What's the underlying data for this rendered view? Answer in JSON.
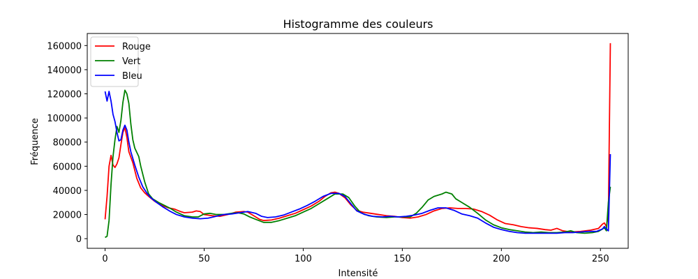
{
  "chart_data": {
    "type": "line",
    "title": "Histogramme des couleurs",
    "xlabel": "Intensité",
    "ylabel": "Fréquence",
    "xlim": [
      -9,
      264
    ],
    "ylim": [
      -8000,
      170000
    ],
    "xticks": [
      0,
      50,
      100,
      150,
      200,
      250
    ],
    "yticks": [
      0,
      20000,
      40000,
      60000,
      80000,
      100000,
      120000,
      140000,
      160000
    ],
    "grid": false,
    "legend_position": "top-left",
    "series": [
      {
        "name": "Rouge",
        "color": "#ff0000",
        "points": [
          [
            0,
            16000
          ],
          [
            1,
            35000
          ],
          [
            2,
            60000
          ],
          [
            3,
            69000
          ],
          [
            4,
            61000
          ],
          [
            5,
            59000
          ],
          [
            6,
            62000
          ],
          [
            7,
            67000
          ],
          [
            8,
            78000
          ],
          [
            9,
            88000
          ],
          [
            10,
            92000
          ],
          [
            11,
            84000
          ],
          [
            12,
            72000
          ],
          [
            14,
            63000
          ],
          [
            16,
            50000
          ],
          [
            18,
            42000
          ],
          [
            20,
            38000
          ],
          [
            22,
            35000
          ],
          [
            25,
            31000
          ],
          [
            28,
            28000
          ],
          [
            32,
            25500
          ],
          [
            35,
            24500
          ],
          [
            38,
            22500
          ],
          [
            40,
            21500
          ],
          [
            44,
            22000
          ],
          [
            46,
            23000
          ],
          [
            48,
            22500
          ],
          [
            50,
            20000
          ],
          [
            54,
            19000
          ],
          [
            58,
            18500
          ],
          [
            62,
            20000
          ],
          [
            66,
            22000
          ],
          [
            70,
            22500
          ],
          [
            72,
            22000
          ],
          [
            75,
            19000
          ],
          [
            78,
            16000
          ],
          [
            80,
            15000
          ],
          [
            84,
            15500
          ],
          [
            88,
            17000
          ],
          [
            92,
            19000
          ],
          [
            96,
            21000
          ],
          [
            100,
            24000
          ],
          [
            104,
            27000
          ],
          [
            108,
            31000
          ],
          [
            111,
            35000
          ],
          [
            114,
            38000
          ],
          [
            116,
            38500
          ],
          [
            118,
            37500
          ],
          [
            121,
            34000
          ],
          [
            124,
            28000
          ],
          [
            127,
            23500
          ],
          [
            130,
            22000
          ],
          [
            134,
            21000
          ],
          [
            138,
            20000
          ],
          [
            142,
            19000
          ],
          [
            146,
            18500
          ],
          [
            150,
            17500
          ],
          [
            154,
            17000
          ],
          [
            158,
            18000
          ],
          [
            162,
            20000
          ],
          [
            166,
            23000
          ],
          [
            170,
            25000
          ],
          [
            174,
            25500
          ],
          [
            178,
            25000
          ],
          [
            182,
            25000
          ],
          [
            186,
            24500
          ],
          [
            190,
            22500
          ],
          [
            194,
            19500
          ],
          [
            198,
            15500
          ],
          [
            202,
            12500
          ],
          [
            206,
            11500
          ],
          [
            210,
            10000
          ],
          [
            214,
            9000
          ],
          [
            218,
            8500
          ],
          [
            222,
            7500
          ],
          [
            225,
            7000
          ],
          [
            228,
            8500
          ],
          [
            231,
            6500
          ],
          [
            235,
            5500
          ],
          [
            240,
            6000
          ],
          [
            245,
            7000
          ],
          [
            249,
            8500
          ],
          [
            251,
            12000
          ],
          [
            252,
            13000
          ],
          [
            253,
            10000
          ],
          [
            254,
            20000
          ],
          [
            255,
            162000
          ]
        ]
      },
      {
        "name": "Vert",
        "color": "#008000",
        "points": [
          [
            0,
            1000
          ],
          [
            1,
            2000
          ],
          [
            2,
            15000
          ],
          [
            3,
            45000
          ],
          [
            4,
            68000
          ],
          [
            5,
            82000
          ],
          [
            6,
            93000
          ],
          [
            7,
            88000
          ],
          [
            8,
            98000
          ],
          [
            9,
            113000
          ],
          [
            10,
            123000
          ],
          [
            11,
            120000
          ],
          [
            12,
            112000
          ],
          [
            13,
            95000
          ],
          [
            14,
            82000
          ],
          [
            15,
            75000
          ],
          [
            17,
            68000
          ],
          [
            18,
            60000
          ],
          [
            20,
            47000
          ],
          [
            22,
            37000
          ],
          [
            24,
            33000
          ],
          [
            27,
            30000
          ],
          [
            30,
            27500
          ],
          [
            33,
            25000
          ],
          [
            36,
            22000
          ],
          [
            40,
            19000
          ],
          [
            44,
            18000
          ],
          [
            47,
            18000
          ],
          [
            50,
            20500
          ],
          [
            53,
            21000
          ],
          [
            56,
            20000
          ],
          [
            60,
            20000
          ],
          [
            64,
            21000
          ],
          [
            67,
            21500
          ],
          [
            70,
            20500
          ],
          [
            73,
            18000
          ],
          [
            76,
            16000
          ],
          [
            80,
            13500
          ],
          [
            84,
            13500
          ],
          [
            88,
            15000
          ],
          [
            92,
            17000
          ],
          [
            96,
            19000
          ],
          [
            100,
            22000
          ],
          [
            104,
            25000
          ],
          [
            108,
            29000
          ],
          [
            112,
            33000
          ],
          [
            116,
            37000
          ],
          [
            120,
            37000
          ],
          [
            123,
            34000
          ],
          [
            126,
            27000
          ],
          [
            129,
            21500
          ],
          [
            133,
            19000
          ],
          [
            137,
            18000
          ],
          [
            142,
            17500
          ],
          [
            146,
            18000
          ],
          [
            150,
            18000
          ],
          [
            154,
            18000
          ],
          [
            157,
            21000
          ],
          [
            160,
            26000
          ],
          [
            163,
            32000
          ],
          [
            166,
            35000
          ],
          [
            168,
            36000
          ],
          [
            170,
            37000
          ],
          [
            172,
            38500
          ],
          [
            175,
            37000
          ],
          [
            177,
            33000
          ],
          [
            180,
            30000
          ],
          [
            184,
            26000
          ],
          [
            188,
            21000
          ],
          [
            192,
            15500
          ],
          [
            196,
            11500
          ],
          [
            200,
            9000
          ],
          [
            204,
            7500
          ],
          [
            208,
            6500
          ],
          [
            212,
            5500
          ],
          [
            216,
            5000
          ],
          [
            220,
            5500
          ],
          [
            224,
            5000
          ],
          [
            228,
            5000
          ],
          [
            232,
            5500
          ],
          [
            235,
            6500
          ],
          [
            238,
            5000
          ],
          [
            242,
            4500
          ],
          [
            246,
            5000
          ],
          [
            249,
            6000
          ],
          [
            251,
            8000
          ],
          [
            252,
            9000
          ],
          [
            253,
            6500
          ],
          [
            254,
            30000
          ],
          [
            255,
            43000
          ]
        ]
      },
      {
        "name": "Bleu",
        "color": "#0000ff",
        "points": [
          [
            0,
            122000
          ],
          [
            1,
            114000
          ],
          [
            2,
            122000
          ],
          [
            3,
            114000
          ],
          [
            4,
            103000
          ],
          [
            5,
            97000
          ],
          [
            6,
            88000
          ],
          [
            7,
            81000
          ],
          [
            8,
            82000
          ],
          [
            9,
            90000
          ],
          [
            10,
            94000
          ],
          [
            11,
            90000
          ],
          [
            12,
            80000
          ],
          [
            13,
            72000
          ],
          [
            15,
            61000
          ],
          [
            17,
            51000
          ],
          [
            19,
            43000
          ],
          [
            21,
            38000
          ],
          [
            23,
            34000
          ],
          [
            26,
            30000
          ],
          [
            29,
            26500
          ],
          [
            33,
            22500
          ],
          [
            36,
            20000
          ],
          [
            40,
            18000
          ],
          [
            44,
            17000
          ],
          [
            48,
            16500
          ],
          [
            52,
            17000
          ],
          [
            56,
            18500
          ],
          [
            60,
            20000
          ],
          [
            64,
            20500
          ],
          [
            68,
            21500
          ],
          [
            72,
            22500
          ],
          [
            76,
            21000
          ],
          [
            79,
            18500
          ],
          [
            82,
            17500
          ],
          [
            86,
            18000
          ],
          [
            90,
            19500
          ],
          [
            94,
            22000
          ],
          [
            98,
            24500
          ],
          [
            102,
            27500
          ],
          [
            106,
            31000
          ],
          [
            110,
            35000
          ],
          [
            114,
            37500
          ],
          [
            118,
            37500
          ],
          [
            121,
            35000
          ],
          [
            124,
            29000
          ],
          [
            127,
            23000
          ],
          [
            131,
            20000
          ],
          [
            135,
            18500
          ],
          [
            140,
            18000
          ],
          [
            144,
            18500
          ],
          [
            148,
            18000
          ],
          [
            152,
            18500
          ],
          [
            156,
            19500
          ],
          [
            160,
            21000
          ],
          [
            164,
            23500
          ],
          [
            168,
            25500
          ],
          [
            172,
            25500
          ],
          [
            176,
            23500
          ],
          [
            180,
            20500
          ],
          [
            184,
            19000
          ],
          [
            188,
            17000
          ],
          [
            192,
            13000
          ],
          [
            196,
            9500
          ],
          [
            200,
            7500
          ],
          [
            204,
            6000
          ],
          [
            208,
            5000
          ],
          [
            212,
            4500
          ],
          [
            216,
            4500
          ],
          [
            220,
            4500
          ],
          [
            224,
            4500
          ],
          [
            228,
            4500
          ],
          [
            232,
            5000
          ],
          [
            236,
            5000
          ],
          [
            240,
            5500
          ],
          [
            244,
            6000
          ],
          [
            248,
            6000
          ],
          [
            251,
            8000
          ],
          [
            252,
            10000
          ],
          [
            253,
            8000
          ],
          [
            254,
            6500
          ],
          [
            255,
            70000
          ]
        ]
      }
    ]
  }
}
